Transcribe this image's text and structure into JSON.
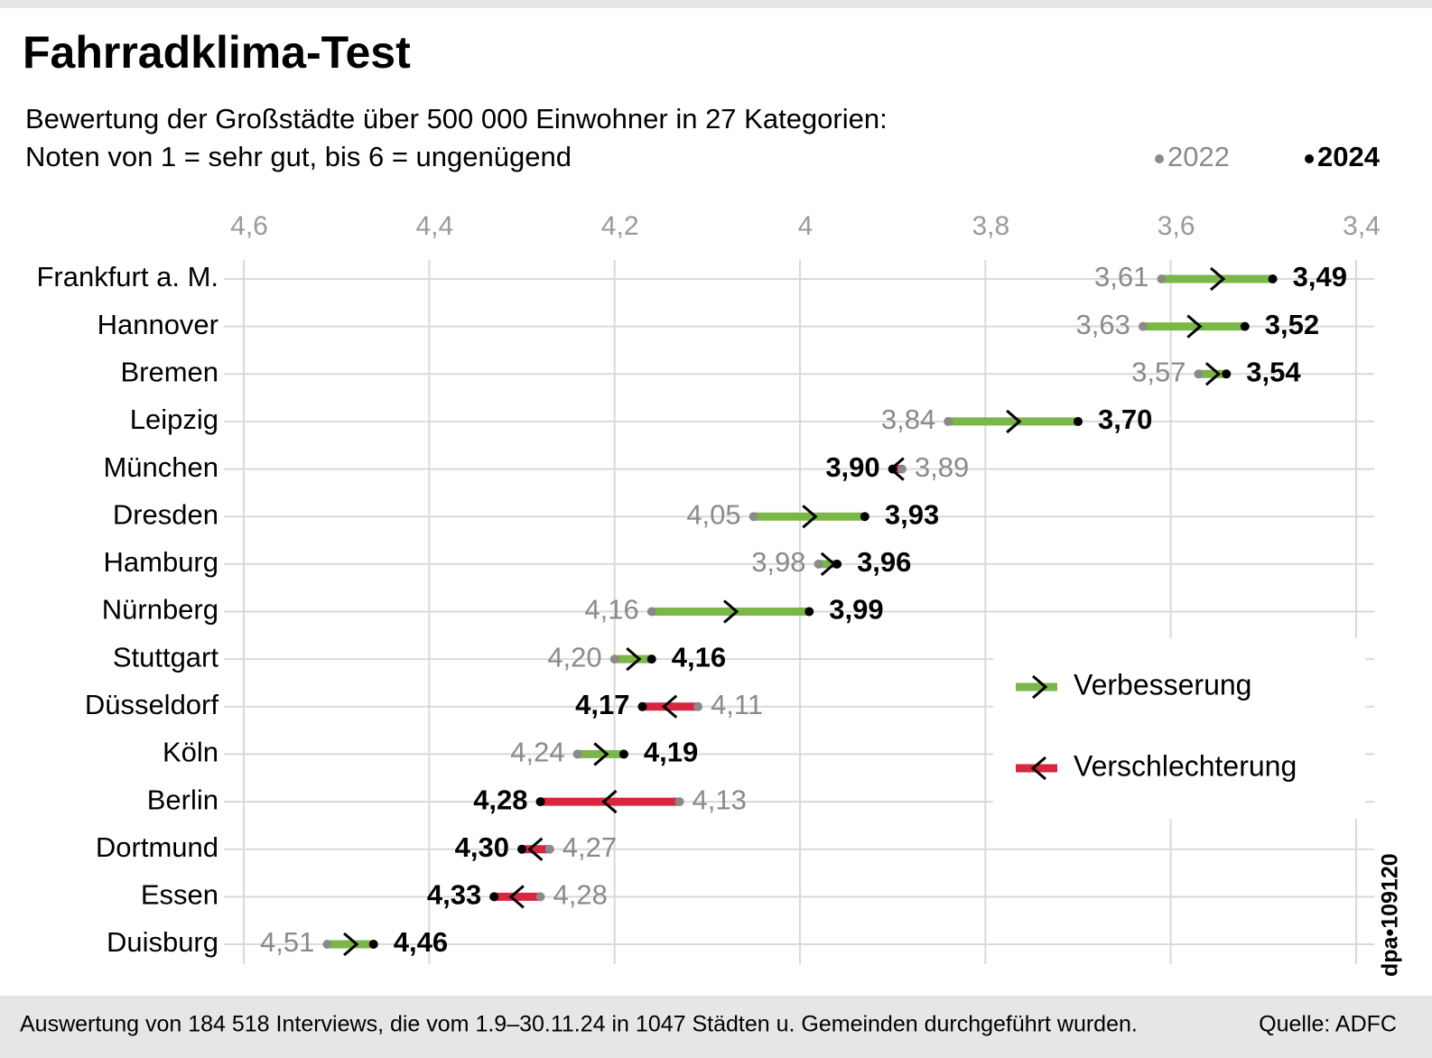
{
  "chart_data": {
    "type": "dumbbell",
    "title": "Fahrradklima-Test",
    "subtitle": [
      "Bewertung der Großstädte über 500 000 Einwohner in 27 Kategorien:",
      "Noten von 1 = sehr gut, bis 6 = ungenügend"
    ],
    "categories": [
      "Frankfurt a. M.",
      "Hannover",
      "Bremen",
      "Leipzig",
      "München",
      "Dresden",
      "Hamburg",
      "Nürnberg",
      "Stuttgart",
      "Düsseldorf",
      "Köln",
      "Berlin",
      "Dortmund",
      "Essen",
      "Duisburg"
    ],
    "series": [
      {
        "name": "2022",
        "color": "#8a8a8a",
        "values": [
          3.61,
          3.63,
          3.57,
          3.84,
          3.89,
          4.05,
          3.98,
          4.16,
          4.2,
          4.11,
          4.24,
          4.13,
          4.27,
          4.28,
          4.51
        ],
        "value_labels": [
          "3,61",
          "3,63",
          "3,57",
          "3,84",
          "3,89",
          "4,05",
          "3,98",
          "4,16",
          "4,20",
          "4,11",
          "4,24",
          "4,13",
          "4,27",
          "4,28",
          "4,51"
        ]
      },
      {
        "name": "2024",
        "color": "#000000",
        "values": [
          3.49,
          3.52,
          3.54,
          3.7,
          3.9,
          3.93,
          3.96,
          3.99,
          4.16,
          4.17,
          4.19,
          4.28,
          4.3,
          4.33,
          4.46
        ],
        "value_labels": [
          "3,49",
          "3,52",
          "3,54",
          "3,70",
          "3,90",
          "3,93",
          "3,96",
          "3,99",
          "4,16",
          "4,17",
          "4,19",
          "4,28",
          "4,30",
          "4,33",
          "4,46"
        ]
      }
    ],
    "change_legend": [
      {
        "label": "Verbesserung",
        "color": "#7ab648"
      },
      {
        "label": "Verschlechterung",
        "color": "#d7263d"
      }
    ],
    "xlim": [
      4.6,
      3.4
    ],
    "xticks": [
      {
        "value": 4.6,
        "label": "4,6"
      },
      {
        "value": 4.4,
        "label": "4,4"
      },
      {
        "value": 4.2,
        "label": "4,2"
      },
      4,
      {
        "value": 3.8,
        "label": "3,8"
      },
      {
        "value": 3.6,
        "label": "3,6"
      },
      {
        "value": 3.4,
        "label": "3,4"
      }
    ],
    "grid": true,
    "note": "Auswertung von 184 518 Interviews, die vom 1.9–30.11.24 in 1047 Städten u. Gemeinden durchgeführt wurden.",
    "source": "Quelle: ADFC",
    "graphic_id": "dpa•109120"
  }
}
